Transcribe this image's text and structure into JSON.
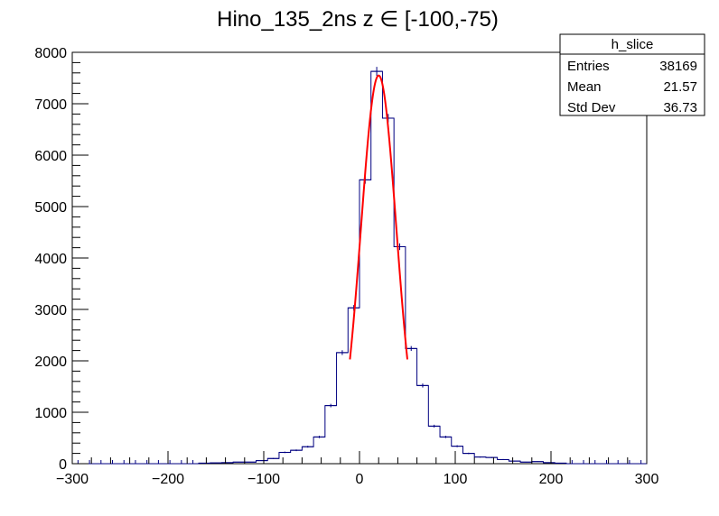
{
  "chart_data": {
    "type": "histogram",
    "title": "Hino_135_2ns z  ∈ [-100,-75)",
    "xlabel": "",
    "ylabel": "",
    "xlim": [
      -300,
      300
    ],
    "ylim": [
      0,
      8000
    ],
    "x_ticks": [
      "−300",
      "−200",
      "−100",
      "0",
      "100",
      "200",
      "300"
    ],
    "y_ticks": [
      "0",
      "1000",
      "2000",
      "3000",
      "4000",
      "5000",
      "6000",
      "7000",
      "8000"
    ],
    "bin_width": 12,
    "bins": [
      {
        "x0": -168,
        "x1": -156,
        "y": 10
      },
      {
        "x0": -156,
        "x1": -144,
        "y": 15
      },
      {
        "x0": -144,
        "x1": -132,
        "y": 20
      },
      {
        "x0": -132,
        "x1": -120,
        "y": 30
      },
      {
        "x0": -120,
        "x1": -108,
        "y": 30
      },
      {
        "x0": -108,
        "x1": -96,
        "y": 60
      },
      {
        "x0": -96,
        "x1": -84,
        "y": 100
      },
      {
        "x0": -84,
        "x1": -72,
        "y": 220
      },
      {
        "x0": -72,
        "x1": -60,
        "y": 260
      },
      {
        "x0": -60,
        "x1": -48,
        "y": 330
      },
      {
        "x0": -48,
        "x1": -36,
        "y": 520
      },
      {
        "x0": -36,
        "x1": -24,
        "y": 1130
      },
      {
        "x0": -24,
        "x1": -12,
        "y": 2160
      },
      {
        "x0": -12,
        "x1": 0,
        "y": 3030
      },
      {
        "x0": 0,
        "x1": 12,
        "y": 5520
      },
      {
        "x0": 12,
        "x1": 24,
        "y": 7630
      },
      {
        "x0": 24,
        "x1": 36,
        "y": 6720
      },
      {
        "x0": 36,
        "x1": 48,
        "y": 4220
      },
      {
        "x0": 48,
        "x1": 60,
        "y": 2240
      },
      {
        "x0": 60,
        "x1": 72,
        "y": 1520
      },
      {
        "x0": 72,
        "x1": 84,
        "y": 730
      },
      {
        "x0": 84,
        "x1": 96,
        "y": 520
      },
      {
        "x0": 96,
        "x1": 108,
        "y": 340
      },
      {
        "x0": 108,
        "x1": 120,
        "y": 200
      },
      {
        "x0": 120,
        "x1": 132,
        "y": 130
      },
      {
        "x0": 132,
        "x1": 144,
        "y": 120
      },
      {
        "x0": 144,
        "x1": 156,
        "y": 80
      },
      {
        "x0": 156,
        "x1": 168,
        "y": 50
      },
      {
        "x0": 168,
        "x1": 180,
        "y": 30
      },
      {
        "x0": 180,
        "x1": 192,
        "y": 40
      },
      {
        "x0": 192,
        "x1": 204,
        "y": 20
      },
      {
        "x0": 204,
        "x1": 216,
        "y": 10
      }
    ],
    "fit": {
      "type": "gaussian",
      "amplitude": 7550,
      "mean": 20,
      "sigma": 18.5,
      "range": [
        -10,
        50
      ]
    },
    "colors": {
      "histogram": "#000080",
      "fit": "#ff0000",
      "frame": "#000000"
    },
    "stats_box": {
      "title": "h_slice",
      "rows": [
        {
          "label": "Entries",
          "value": "38169"
        },
        {
          "label": "Mean",
          "value": "21.57"
        },
        {
          "label": "Std Dev",
          "value": "36.73"
        }
      ]
    }
  }
}
